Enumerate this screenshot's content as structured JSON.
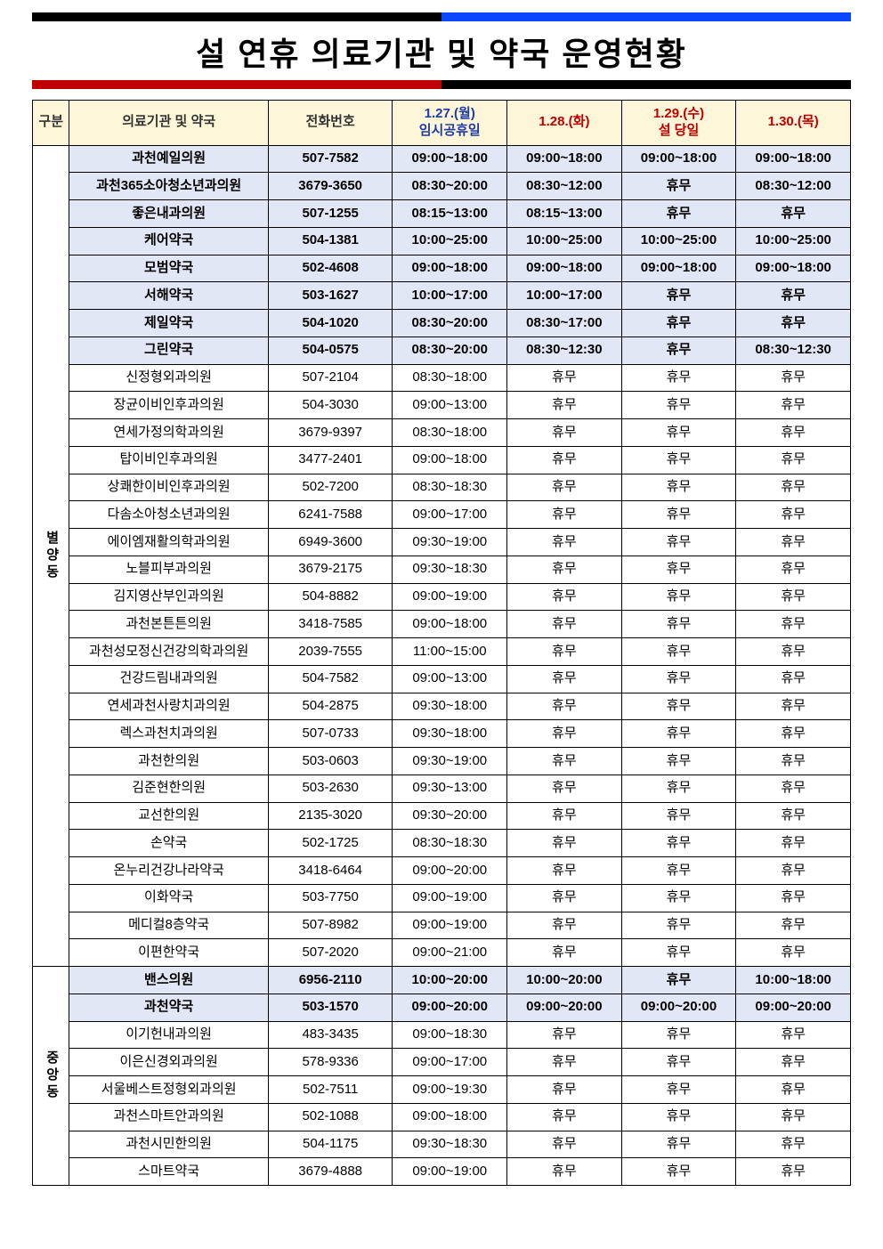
{
  "title": "설 연휴 의료기관 및 약국 운영현황",
  "columns": [
    {
      "label": "구분",
      "cls": "mute"
    },
    {
      "label": "의료기관 및 약국",
      "cls": "mute"
    },
    {
      "label": "전화번호",
      "cls": "mute"
    },
    {
      "label": "1.27.(월)\n임시공휴일",
      "cls": "blue"
    },
    {
      "label": "1.28.(화)",
      "cls": "red"
    },
    {
      "label": "1.29.(수)\n설 당일",
      "cls": "red"
    },
    {
      "label": "1.30.(목)",
      "cls": "red"
    }
  ],
  "groups": [
    {
      "name": "별양동",
      "rows": [
        {
          "hl": true,
          "cells": [
            "과천예일의원",
            "507-7582",
            "09:00~18:00",
            "09:00~18:00",
            "09:00~18:00",
            "09:00~18:00"
          ]
        },
        {
          "hl": true,
          "cells": [
            "과천365소아청소년과의원",
            "3679-3650",
            "08:30~20:00",
            "08:30~12:00",
            "휴무",
            "08:30~12:00"
          ]
        },
        {
          "hl": true,
          "cells": [
            "좋은내과의원",
            "507-1255",
            "08:15~13:00",
            "08:15~13:00",
            "휴무",
            "휴무"
          ]
        },
        {
          "hl": true,
          "cells": [
            "케어약국",
            "504-1381",
            "10:00~25:00",
            "10:00~25:00",
            "10:00~25:00",
            "10:00~25:00"
          ]
        },
        {
          "hl": true,
          "cells": [
            "모범약국",
            "502-4608",
            "09:00~18:00",
            "09:00~18:00",
            "09:00~18:00",
            "09:00~18:00"
          ]
        },
        {
          "hl": true,
          "cells": [
            "서해약국",
            "503-1627",
            "10:00~17:00",
            "10:00~17:00",
            "휴무",
            "휴무"
          ]
        },
        {
          "hl": true,
          "cells": [
            "제일약국",
            "504-1020",
            "08:30~20:00",
            "08:30~17:00",
            "휴무",
            "휴무"
          ]
        },
        {
          "hl": true,
          "cells": [
            "그린약국",
            "504-0575",
            "08:30~20:00",
            "08:30~12:30",
            "휴무",
            "08:30~12:30"
          ]
        },
        {
          "hl": false,
          "cells": [
            "신정형외과의원",
            "507-2104",
            "08:30~18:00",
            "휴무",
            "휴무",
            "휴무"
          ]
        },
        {
          "hl": false,
          "cells": [
            "장균이비인후과의원",
            "504-3030",
            "09:00~13:00",
            "휴무",
            "휴무",
            "휴무"
          ]
        },
        {
          "hl": false,
          "cells": [
            "연세가정의학과의원",
            "3679-9397",
            "08:30~18:00",
            "휴무",
            "휴무",
            "휴무"
          ]
        },
        {
          "hl": false,
          "cells": [
            "탑이비인후과의원",
            "3477-2401",
            "09:00~18:00",
            "휴무",
            "휴무",
            "휴무"
          ]
        },
        {
          "hl": false,
          "cells": [
            "상쾌한이비인후과의원",
            "502-7200",
            "08:30~18:30",
            "휴무",
            "휴무",
            "휴무"
          ]
        },
        {
          "hl": false,
          "cells": [
            "다솜소아청소년과의원",
            "6241-7588",
            "09:00~17:00",
            "휴무",
            "휴무",
            "휴무"
          ]
        },
        {
          "hl": false,
          "cells": [
            "에이엠재활의학과의원",
            "6949-3600",
            "09:30~19:00",
            "휴무",
            "휴무",
            "휴무"
          ]
        },
        {
          "hl": false,
          "cells": [
            "노블피부과의원",
            "3679-2175",
            "09:30~18:30",
            "휴무",
            "휴무",
            "휴무"
          ]
        },
        {
          "hl": false,
          "cells": [
            "김지영산부인과의원",
            "504-8882",
            "09:00~19:00",
            "휴무",
            "휴무",
            "휴무"
          ]
        },
        {
          "hl": false,
          "cells": [
            "과천본튼튼의원",
            "3418-7585",
            "09:00~18:00",
            "휴무",
            "휴무",
            "휴무"
          ]
        },
        {
          "hl": false,
          "cells": [
            "과천성모정신건강의학과의원",
            "2039-7555",
            "11:00~15:00",
            "휴무",
            "휴무",
            "휴무"
          ]
        },
        {
          "hl": false,
          "cells": [
            "건강드림내과의원",
            "504-7582",
            "09:00~13:00",
            "휴무",
            "휴무",
            "휴무"
          ]
        },
        {
          "hl": false,
          "cells": [
            "연세과천사랑치과의원",
            "504-2875",
            "09:30~18:00",
            "휴무",
            "휴무",
            "휴무"
          ]
        },
        {
          "hl": false,
          "cells": [
            "렉스과천치과의원",
            "507-0733",
            "09:30~18:00",
            "휴무",
            "휴무",
            "휴무"
          ]
        },
        {
          "hl": false,
          "cells": [
            "과천한의원",
            "503-0603",
            "09:30~19:00",
            "휴무",
            "휴무",
            "휴무"
          ]
        },
        {
          "hl": false,
          "cells": [
            "김준현한의원",
            "503-2630",
            "09:30~13:00",
            "휴무",
            "휴무",
            "휴무"
          ]
        },
        {
          "hl": false,
          "cells": [
            "교선한의원",
            "2135-3020",
            "09:30~20:00",
            "휴무",
            "휴무",
            "휴무"
          ]
        },
        {
          "hl": false,
          "cells": [
            "손약국",
            "502-1725",
            "08:30~18:30",
            "휴무",
            "휴무",
            "휴무"
          ]
        },
        {
          "hl": false,
          "cells": [
            "온누리건강나라약국",
            "3418-6464",
            "09:00~20:00",
            "휴무",
            "휴무",
            "휴무"
          ]
        },
        {
          "hl": false,
          "cells": [
            "이화약국",
            "503-7750",
            "09:00~19:00",
            "휴무",
            "휴무",
            "휴무"
          ]
        },
        {
          "hl": false,
          "cells": [
            "메디컬8층약국",
            "507-8982",
            "09:00~19:00",
            "휴무",
            "휴무",
            "휴무"
          ]
        },
        {
          "hl": false,
          "cells": [
            "이편한약국",
            "507-2020",
            "09:00~21:00",
            "휴무",
            "휴무",
            "휴무"
          ]
        }
      ]
    },
    {
      "name": "중앙동",
      "rows": [
        {
          "hl": true,
          "cells": [
            "밴스의원",
            "6956-2110",
            "10:00~20:00",
            "10:00~20:00",
            "휴무",
            "10:00~18:00"
          ]
        },
        {
          "hl": true,
          "cells": [
            "과천약국",
            "503-1570",
            "09:00~20:00",
            "09:00~20:00",
            "09:00~20:00",
            "09:00~20:00"
          ]
        },
        {
          "hl": false,
          "cells": [
            "이기헌내과의원",
            "483-3435",
            "09:00~18:30",
            "휴무",
            "휴무",
            "휴무"
          ]
        },
        {
          "hl": false,
          "cells": [
            "이은신경외과의원",
            "578-9336",
            "09:00~17:00",
            "휴무",
            "휴무",
            "휴무"
          ]
        },
        {
          "hl": false,
          "cells": [
            "서울베스트정형외과의원",
            "502-7511",
            "09:00~19:30",
            "휴무",
            "휴무",
            "휴무"
          ]
        },
        {
          "hl": false,
          "cells": [
            "과천스마트안과의원",
            "502-1088",
            "09:00~18:00",
            "휴무",
            "휴무",
            "휴무"
          ]
        },
        {
          "hl": false,
          "cells": [
            "과천시민한의원",
            "504-1175",
            "09:30~18:30",
            "휴무",
            "휴무",
            "휴무"
          ]
        },
        {
          "hl": false,
          "cells": [
            "스마트약국",
            "3679-4888",
            "09:00~19:00",
            "휴무",
            "휴무",
            "휴무"
          ]
        }
      ]
    }
  ]
}
